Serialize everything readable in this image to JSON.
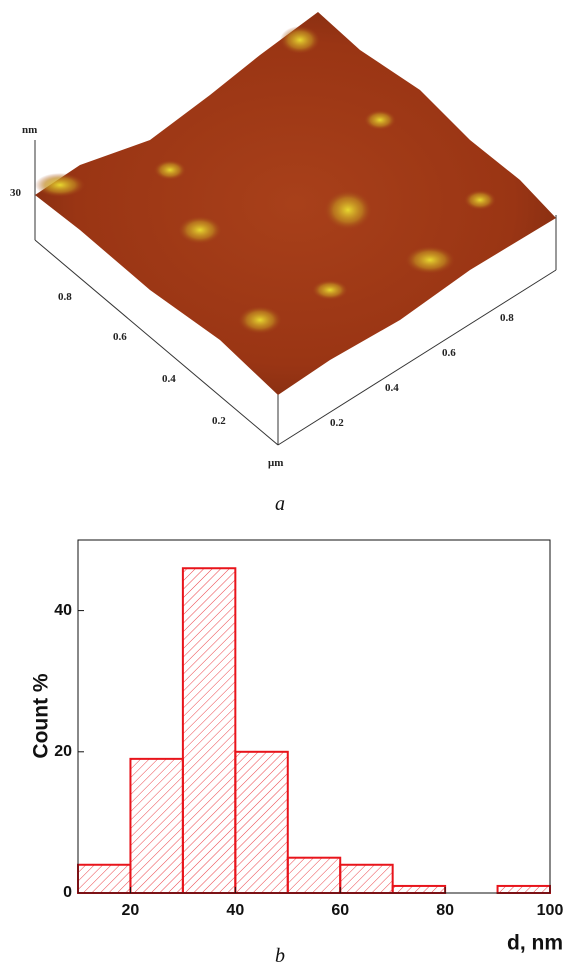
{
  "afm_image": {
    "z_unit": "nm",
    "z_tick": "30",
    "left_axis_ticks": [
      "0.8",
      "0.6",
      "0.4",
      "0.2"
    ],
    "right_axis_ticks": [
      "0.2",
      "0.4",
      "0.6",
      "0.8"
    ],
    "xy_unit": "μm",
    "caption": "a"
  },
  "chart_data": {
    "type": "histogram",
    "bins": [
      10,
      20,
      30,
      40,
      50,
      60,
      70,
      80,
      90,
      100
    ],
    "values": [
      4,
      19,
      46,
      20,
      5,
      4,
      1,
      0,
      1
    ],
    "color": "#e8141b",
    "xlim": [
      10,
      100
    ],
    "ylim": [
      0,
      50
    ],
    "xticks": [
      20,
      40,
      60,
      80,
      100
    ],
    "yticks": [
      0,
      20,
      40
    ],
    "xlabel": "d, nm",
    "ylabel": "Count %",
    "caption": "b"
  }
}
